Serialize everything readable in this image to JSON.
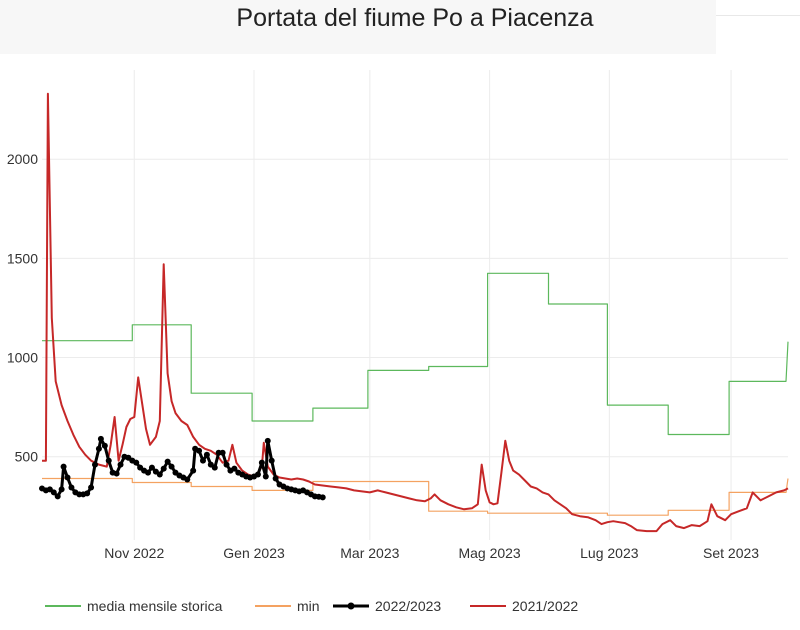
{
  "chart_data": {
    "type": "line",
    "title": "Portata del fiume Po a Piacenza",
    "xlabel": "",
    "ylabel": "",
    "x_range": [
      "2022-09-15",
      "2023-09-30"
    ],
    "ylim": [
      80,
      2450
    ],
    "x_ticks": [
      {
        "date": "2022-11-01",
        "label": "Nov 2022"
      },
      {
        "date": "2023-01-01",
        "label": "Gen 2023"
      },
      {
        "date": "2023-03-01",
        "label": "Mar 2023"
      },
      {
        "date": "2023-05-01",
        "label": "Mag 2023"
      },
      {
        "date": "2023-07-01",
        "label": "Lug 2023"
      },
      {
        "date": "2023-09-01",
        "label": "Set 2023"
      }
    ],
    "y_ticks": [
      500,
      1000,
      1500,
      2000
    ],
    "grid": true,
    "legend_position": "bottom",
    "series": [
      {
        "name": "media mensile storica",
        "color": "#5cb85c",
        "shape": "step",
        "points": [
          [
            "2022-09-15",
            1085
          ],
          [
            "2022-10-31",
            1085
          ],
          [
            "2022-10-31",
            1165
          ],
          [
            "2022-11-30",
            1165
          ],
          [
            "2022-11-30",
            820
          ],
          [
            "2022-12-31",
            820
          ],
          [
            "2022-12-31",
            680
          ],
          [
            "2023-01-31",
            680
          ],
          [
            "2023-01-31",
            745
          ],
          [
            "2023-02-28",
            745
          ],
          [
            "2023-02-28",
            935
          ],
          [
            "2023-03-31",
            935
          ],
          [
            "2023-03-31",
            955
          ],
          [
            "2023-04-30",
            955
          ],
          [
            "2023-04-30",
            1425
          ],
          [
            "2023-05-31",
            1425
          ],
          [
            "2023-05-31",
            1270
          ],
          [
            "2023-06-30",
            1270
          ],
          [
            "2023-06-30",
            760
          ],
          [
            "2023-07-31",
            760
          ],
          [
            "2023-07-31",
            612
          ],
          [
            "2023-08-31",
            612
          ],
          [
            "2023-08-31",
            880
          ],
          [
            "2023-09-29",
            880
          ],
          [
            "2023-09-30",
            1080
          ]
        ]
      },
      {
        "name": "min",
        "color": "#f4a261",
        "shape": "step",
        "points": [
          [
            "2022-09-15",
            390
          ],
          [
            "2022-10-31",
            390
          ],
          [
            "2022-10-31",
            370
          ],
          [
            "2022-11-30",
            370
          ],
          [
            "2022-11-30",
            350
          ],
          [
            "2022-12-31",
            350
          ],
          [
            "2022-12-31",
            330
          ],
          [
            "2023-01-31",
            330
          ],
          [
            "2023-01-31",
            375
          ],
          [
            "2023-03-31",
            375
          ],
          [
            "2023-03-31",
            225
          ],
          [
            "2023-04-30",
            225
          ],
          [
            "2023-04-30",
            215
          ],
          [
            "2023-06-30",
            215
          ],
          [
            "2023-06-30",
            205
          ],
          [
            "2023-07-31",
            205
          ],
          [
            "2023-07-31",
            230
          ],
          [
            "2023-08-31",
            230
          ],
          [
            "2023-08-31",
            320
          ],
          [
            "2023-09-29",
            320
          ],
          [
            "2023-09-30",
            390
          ]
        ]
      },
      {
        "name": "2022/2023",
        "color": "#000000",
        "markers": true,
        "points": [
          [
            "2022-09-15",
            340
          ],
          [
            "2022-09-17",
            330
          ],
          [
            "2022-09-19",
            335
          ],
          [
            "2022-09-21",
            320
          ],
          [
            "2022-09-23",
            300
          ],
          [
            "2022-09-25",
            335
          ],
          [
            "2022-09-26",
            450
          ],
          [
            "2022-09-28",
            395
          ],
          [
            "2022-09-30",
            345
          ],
          [
            "2022-10-02",
            320
          ],
          [
            "2022-10-04",
            310
          ],
          [
            "2022-10-06",
            310
          ],
          [
            "2022-10-08",
            315
          ],
          [
            "2022-10-10",
            345
          ],
          [
            "2022-10-12",
            460
          ],
          [
            "2022-10-14",
            540
          ],
          [
            "2022-10-15",
            590
          ],
          [
            "2022-10-17",
            555
          ],
          [
            "2022-10-19",
            480
          ],
          [
            "2022-10-21",
            420
          ],
          [
            "2022-10-23",
            415
          ],
          [
            "2022-10-25",
            460
          ],
          [
            "2022-10-27",
            500
          ],
          [
            "2022-10-29",
            495
          ],
          [
            "2022-10-31",
            480
          ],
          [
            "2022-11-02",
            470
          ],
          [
            "2022-11-04",
            445
          ],
          [
            "2022-11-06",
            430
          ],
          [
            "2022-11-08",
            420
          ],
          [
            "2022-11-10",
            445
          ],
          [
            "2022-11-12",
            425
          ],
          [
            "2022-11-14",
            410
          ],
          [
            "2022-11-16",
            440
          ],
          [
            "2022-11-18",
            475
          ],
          [
            "2022-11-20",
            450
          ],
          [
            "2022-11-22",
            420
          ],
          [
            "2022-11-24",
            405
          ],
          [
            "2022-11-26",
            395
          ],
          [
            "2022-11-28",
            385
          ],
          [
            "2022-12-01",
            430
          ],
          [
            "2022-12-02",
            540
          ],
          [
            "2022-12-04",
            530
          ],
          [
            "2022-12-06",
            480
          ],
          [
            "2022-12-08",
            510
          ],
          [
            "2022-12-10",
            460
          ],
          [
            "2022-12-12",
            445
          ],
          [
            "2022-12-14",
            520
          ],
          [
            "2022-12-16",
            520
          ],
          [
            "2022-12-18",
            460
          ],
          [
            "2022-12-20",
            430
          ],
          [
            "2022-12-22",
            440
          ],
          [
            "2022-12-24",
            420
          ],
          [
            "2022-12-26",
            410
          ],
          [
            "2022-12-28",
            400
          ],
          [
            "2022-12-30",
            395
          ],
          [
            "2023-01-01",
            400
          ],
          [
            "2023-01-03",
            410
          ],
          [
            "2023-01-05",
            470
          ],
          [
            "2023-01-07",
            400
          ],
          [
            "2023-01-08",
            580
          ],
          [
            "2023-01-10",
            480
          ],
          [
            "2023-01-12",
            390
          ],
          [
            "2023-01-14",
            360
          ],
          [
            "2023-01-16",
            350
          ],
          [
            "2023-01-18",
            340
          ],
          [
            "2023-01-20",
            335
          ],
          [
            "2023-01-22",
            330
          ],
          [
            "2023-01-24",
            325
          ],
          [
            "2023-01-26",
            330
          ],
          [
            "2023-01-28",
            320
          ],
          [
            "2023-01-30",
            310
          ],
          [
            "2023-02-01",
            300
          ],
          [
            "2023-02-03",
            298
          ],
          [
            "2023-02-05",
            295
          ]
        ]
      },
      {
        "name": "2021/2022",
        "color": "#c62828",
        "points": [
          [
            "2022-09-15",
            480
          ],
          [
            "2022-09-17",
            480
          ],
          [
            "2022-09-18",
            2330
          ],
          [
            "2022-09-20",
            1200
          ],
          [
            "2022-09-22",
            880
          ],
          [
            "2022-09-25",
            760
          ],
          [
            "2022-09-28",
            680
          ],
          [
            "2022-10-01",
            610
          ],
          [
            "2022-10-04",
            550
          ],
          [
            "2022-10-07",
            510
          ],
          [
            "2022-10-10",
            480
          ],
          [
            "2022-10-14",
            460
          ],
          [
            "2022-10-18",
            450
          ],
          [
            "2022-10-20",
            560
          ],
          [
            "2022-10-22",
            700
          ],
          [
            "2022-10-24",
            480
          ],
          [
            "2022-10-26",
            560
          ],
          [
            "2022-10-28",
            650
          ],
          [
            "2022-10-30",
            690
          ],
          [
            "2022-11-01",
            700
          ],
          [
            "2022-11-03",
            900
          ],
          [
            "2022-11-05",
            770
          ],
          [
            "2022-11-07",
            640
          ],
          [
            "2022-11-09",
            560
          ],
          [
            "2022-11-12",
            600
          ],
          [
            "2022-11-14",
            680
          ],
          [
            "2022-11-16",
            1470
          ],
          [
            "2022-11-18",
            920
          ],
          [
            "2022-11-20",
            780
          ],
          [
            "2022-11-22",
            720
          ],
          [
            "2022-11-25",
            680
          ],
          [
            "2022-11-28",
            660
          ],
          [
            "2022-12-01",
            600
          ],
          [
            "2022-12-04",
            560
          ],
          [
            "2022-12-07",
            540
          ],
          [
            "2022-12-10",
            530
          ],
          [
            "2022-12-13",
            510
          ],
          [
            "2022-12-16",
            470
          ],
          [
            "2022-12-19",
            480
          ],
          [
            "2022-12-21",
            560
          ],
          [
            "2022-12-23",
            470
          ],
          [
            "2022-12-26",
            430
          ],
          [
            "2022-12-29",
            410
          ],
          [
            "2023-01-01",
            400
          ],
          [
            "2023-01-03",
            420
          ],
          [
            "2023-01-05",
            450
          ],
          [
            "2023-01-06",
            570
          ],
          [
            "2023-01-08",
            450
          ],
          [
            "2023-01-11",
            410
          ],
          [
            "2023-01-14",
            395
          ],
          [
            "2023-01-17",
            390
          ],
          [
            "2023-01-20",
            385
          ],
          [
            "2023-01-23",
            390
          ],
          [
            "2023-01-26",
            385
          ],
          [
            "2023-01-29",
            375
          ],
          [
            "2023-02-01",
            360
          ],
          [
            "2023-02-05",
            355
          ],
          [
            "2023-02-09",
            350
          ],
          [
            "2023-02-13",
            345
          ],
          [
            "2023-02-17",
            340
          ],
          [
            "2023-02-21",
            330
          ],
          [
            "2023-02-25",
            325
          ],
          [
            "2023-03-01",
            320
          ],
          [
            "2023-03-05",
            330
          ],
          [
            "2023-03-09",
            320
          ],
          [
            "2023-03-13",
            310
          ],
          [
            "2023-03-17",
            300
          ],
          [
            "2023-03-21",
            290
          ],
          [
            "2023-03-25",
            280
          ],
          [
            "2023-03-29",
            275
          ],
          [
            "2023-04-01",
            290
          ],
          [
            "2023-04-03",
            310
          ],
          [
            "2023-04-06",
            280
          ],
          [
            "2023-04-10",
            260
          ],
          [
            "2023-04-14",
            245
          ],
          [
            "2023-04-18",
            235
          ],
          [
            "2023-04-22",
            240
          ],
          [
            "2023-04-25",
            260
          ],
          [
            "2023-04-27",
            460
          ],
          [
            "2023-04-29",
            330
          ],
          [
            "2023-05-01",
            270
          ],
          [
            "2023-05-03",
            260
          ],
          [
            "2023-05-05",
            265
          ],
          [
            "2023-05-07",
            420
          ],
          [
            "2023-05-09",
            580
          ],
          [
            "2023-05-11",
            480
          ],
          [
            "2023-05-13",
            430
          ],
          [
            "2023-05-16",
            410
          ],
          [
            "2023-05-19",
            380
          ],
          [
            "2023-05-22",
            350
          ],
          [
            "2023-05-25",
            340
          ],
          [
            "2023-05-28",
            320
          ],
          [
            "2023-05-31",
            310
          ],
          [
            "2023-06-03",
            280
          ],
          [
            "2023-06-06",
            260
          ],
          [
            "2023-06-09",
            240
          ],
          [
            "2023-06-12",
            210
          ],
          [
            "2023-06-16",
            200
          ],
          [
            "2023-06-20",
            195
          ],
          [
            "2023-06-24",
            180
          ],
          [
            "2023-06-27",
            160
          ],
          [
            "2023-06-30",
            170
          ],
          [
            "2023-07-03",
            175
          ],
          [
            "2023-07-06",
            170
          ],
          [
            "2023-07-09",
            165
          ],
          [
            "2023-07-12",
            150
          ],
          [
            "2023-07-15",
            130
          ],
          [
            "2023-07-20",
            125
          ],
          [
            "2023-07-25",
            125
          ],
          [
            "2023-07-28",
            160
          ],
          [
            "2023-08-01",
            180
          ],
          [
            "2023-08-04",
            150
          ],
          [
            "2023-08-08",
            140
          ],
          [
            "2023-08-12",
            155
          ],
          [
            "2023-08-16",
            150
          ],
          [
            "2023-08-20",
            175
          ],
          [
            "2023-08-22",
            260
          ],
          [
            "2023-08-25",
            200
          ],
          [
            "2023-08-29",
            180
          ],
          [
            "2023-09-01",
            210
          ],
          [
            "2023-09-05",
            225
          ],
          [
            "2023-09-09",
            240
          ],
          [
            "2023-09-12",
            320
          ],
          [
            "2023-09-16",
            280
          ],
          [
            "2023-09-20",
            300
          ],
          [
            "2023-09-24",
            320
          ],
          [
            "2023-09-28",
            330
          ],
          [
            "2023-09-30",
            340
          ]
        ]
      }
    ]
  }
}
